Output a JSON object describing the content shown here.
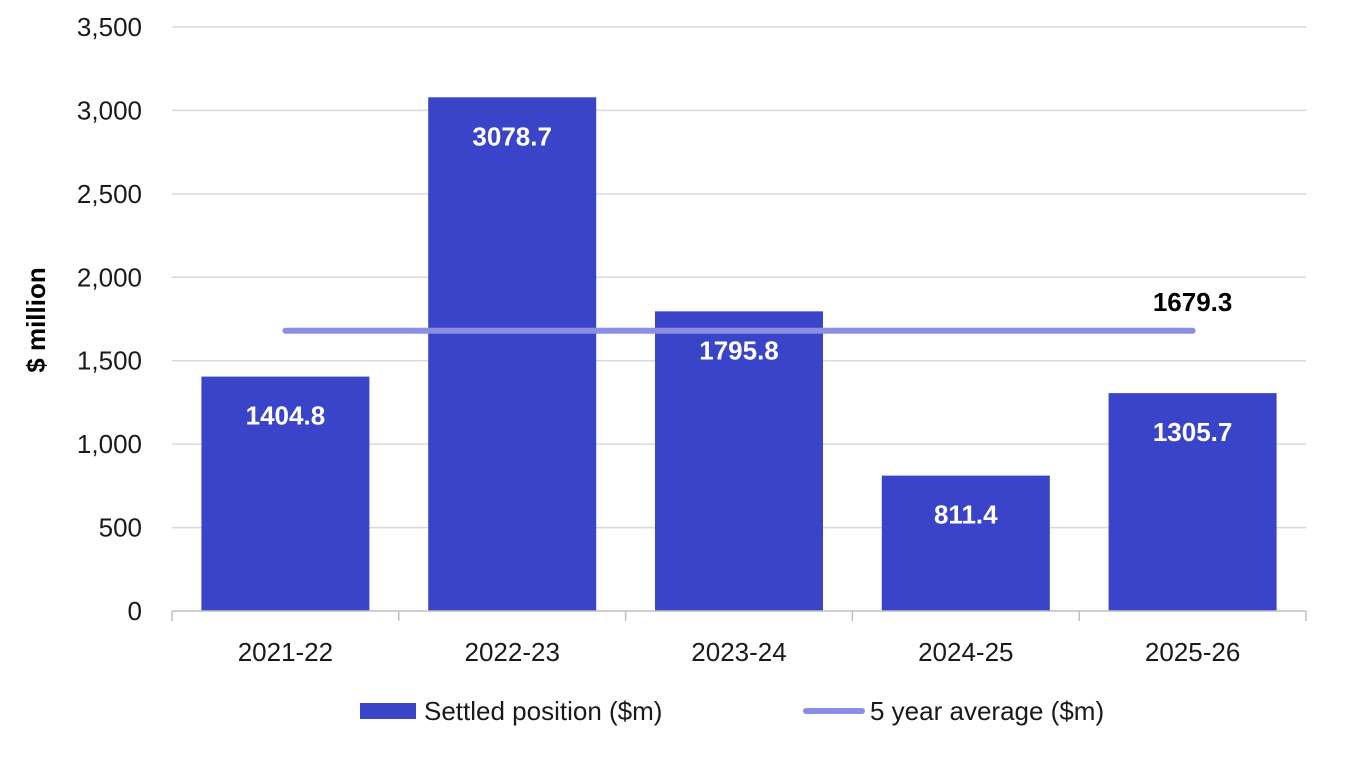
{
  "chart_data": {
    "type": "bar",
    "title": "",
    "xlabel": "",
    "ylabel": "$ million",
    "ylim": [
      0,
      3500
    ],
    "y_ticks": [
      0,
      500,
      1000,
      1500,
      2000,
      2500,
      3000,
      3500
    ],
    "y_tick_labels": [
      "0",
      "500",
      "1,000",
      "1,500",
      "2,000",
      "2,500",
      "3,000",
      "3,500"
    ],
    "categories": [
      "2021-22",
      "2022-23",
      "2023-24",
      "2024-25",
      "2025-26"
    ],
    "grid": true,
    "legend_position": "bottom",
    "series": [
      {
        "name": "Settled position ($m)",
        "kind": "bar",
        "color": "#3944c9",
        "values": [
          1404.8,
          3078.7,
          1795.8,
          811.4,
          1305.7
        ],
        "data_labels": [
          "1404.8",
          "3078.7",
          "1795.8",
          "811.4",
          "1305.7"
        ]
      },
      {
        "name": "5 year average ($m)",
        "kind": "line",
        "color": "#8a8fe3",
        "values": [
          1679.3,
          1679.3,
          1679.3,
          1679.3,
          1679.3
        ],
        "data_label": "1679.3"
      }
    ]
  }
}
